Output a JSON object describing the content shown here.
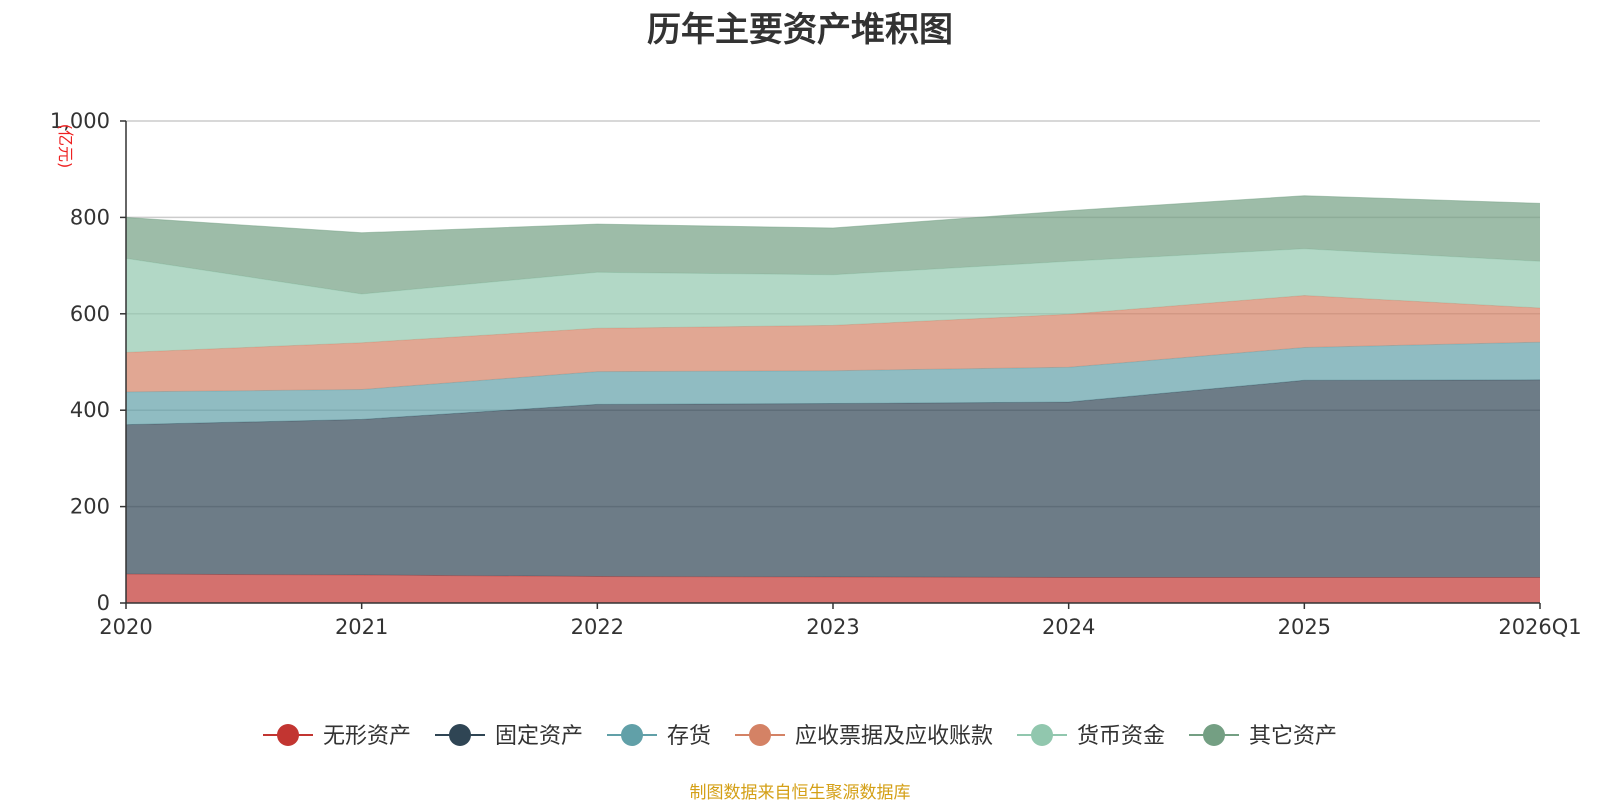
{
  "chart_data": {
    "type": "area",
    "stacked": true,
    "title": "历年主要资产堆积图",
    "ylabel": "亿元",
    "xlabel": "",
    "categories": [
      "2020",
      "2021",
      "2022",
      "2023",
      "2024",
      "2025",
      "2026Q1"
    ],
    "ylim": [
      0,
      1000
    ],
    "yticks": [
      0,
      200,
      400,
      600,
      800,
      1000
    ],
    "ytick_labels": [
      "0",
      "200",
      "400",
      "600",
      "800",
      "1,000"
    ],
    "grid": true,
    "legend_position": "bottom-center",
    "series": [
      {
        "name": "无形资产",
        "color": "#c23531",
        "values": [
          60,
          58,
          55,
          54,
          53,
          53,
          53
        ]
      },
      {
        "name": "固定资产",
        "color": "#2f4554",
        "values": [
          310,
          323,
          357,
          360,
          364,
          409,
          410
        ]
      },
      {
        "name": "存货",
        "color": "#61a0a8",
        "values": [
          68,
          62,
          68,
          68,
          72,
          68,
          78
        ]
      },
      {
        "name": "应收票据及应收账款",
        "color": "#d48265",
        "values": [
          82,
          97,
          90,
          94,
          110,
          108,
          71
        ]
      },
      {
        "name": "货币资金",
        "color": "#91c7ae",
        "values": [
          195,
          101,
          116,
          105,
          110,
          97,
          97
        ]
      },
      {
        "name": "其它资产",
        "color": "#749f83",
        "values": [
          85,
          127,
          100,
          97,
          105,
          110,
          120
        ]
      }
    ]
  },
  "source_note": "制图数据来自恒生聚源数据库"
}
